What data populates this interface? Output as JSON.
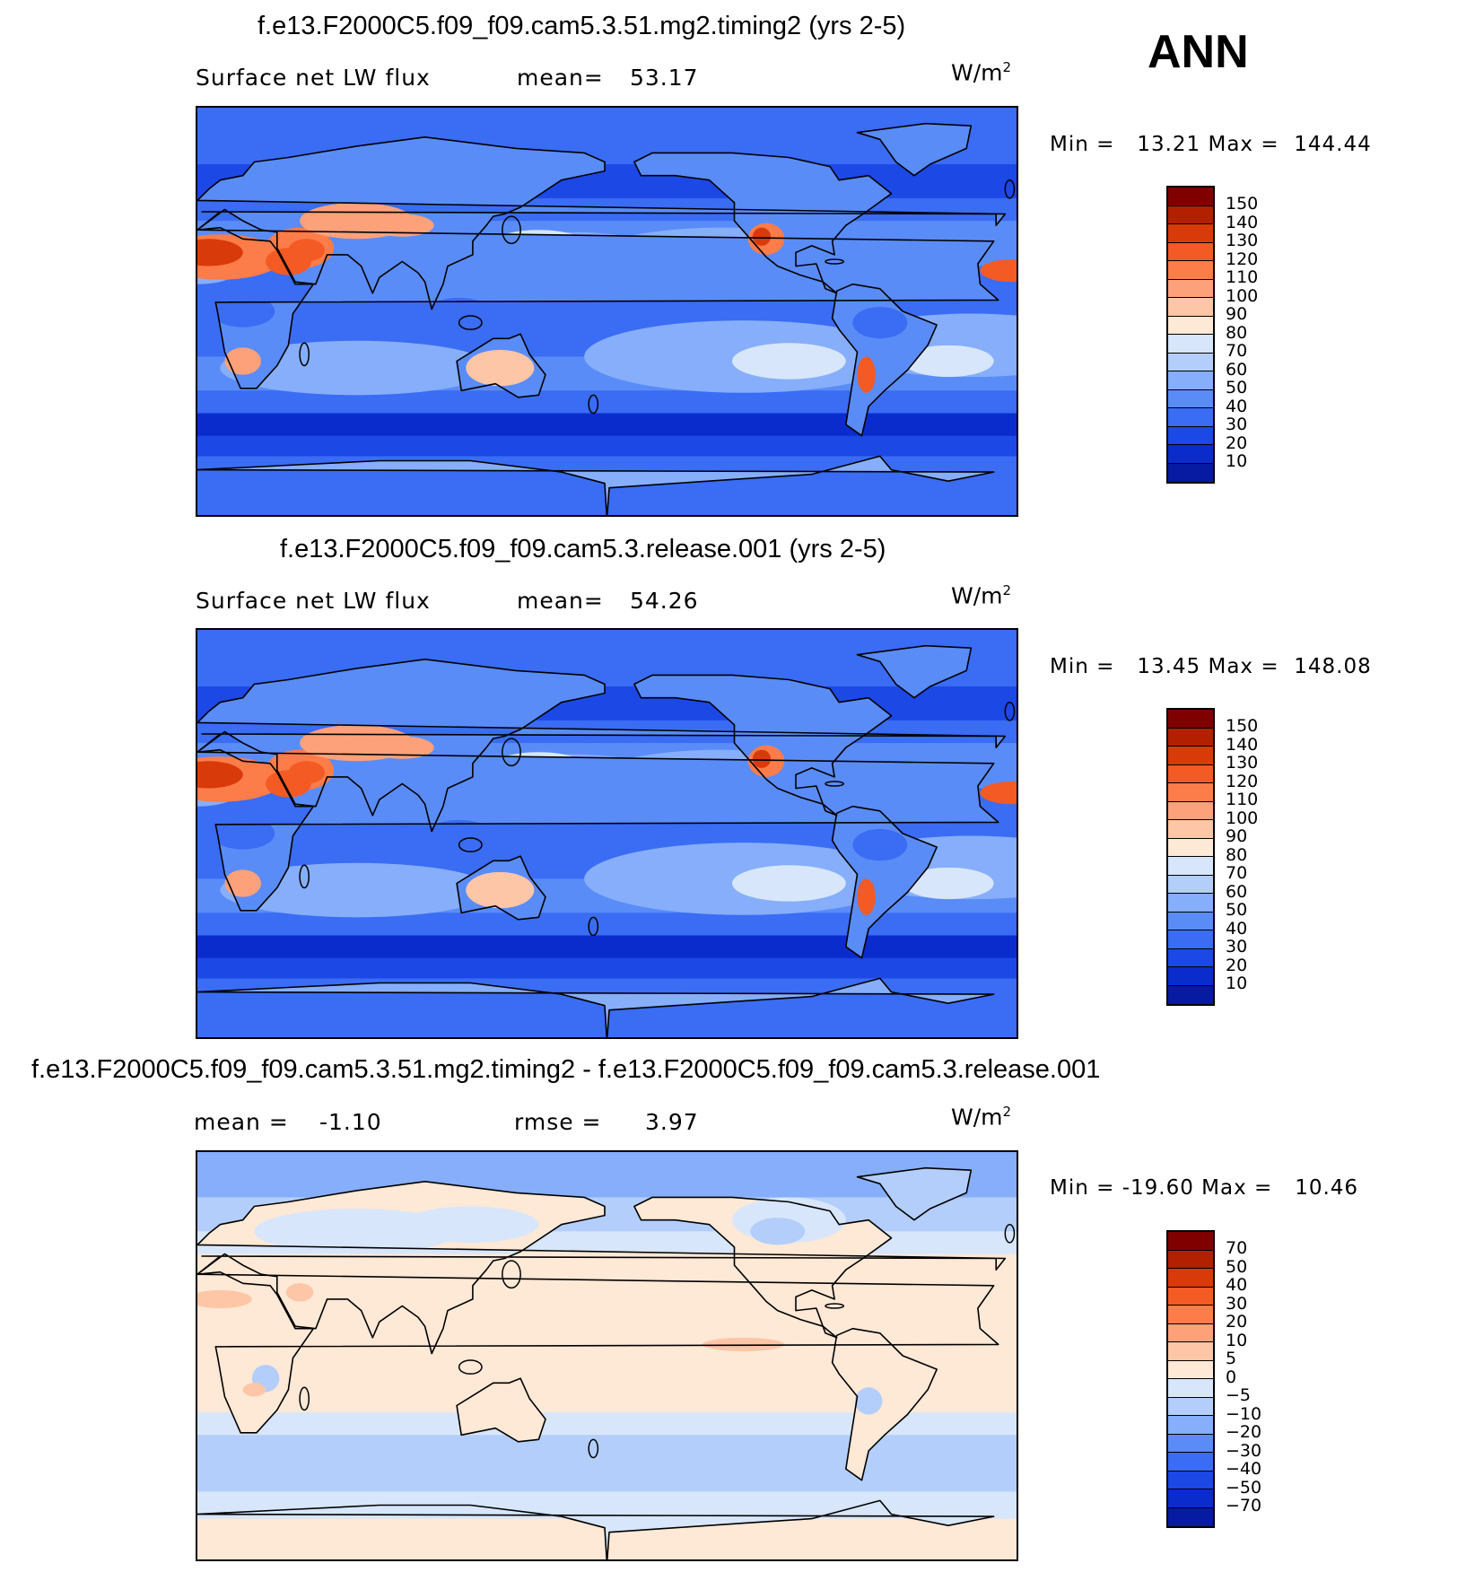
{
  "season": "ANN",
  "panels": [
    {
      "title": "f.e13.F2000C5.f09_f09.cam5.3.51.mg2.timing2 (yrs 2-5)",
      "left_label": "Surface net LW flux",
      "stat_label": "mean=",
      "stat_value": "53.17",
      "stat2_label": "",
      "stat2_value": "",
      "units": "W/m",
      "units_exp": "2",
      "minmax": "Min =   13.21 Max =  144.44",
      "colorbar_labels": [
        "150",
        "140",
        "130",
        "120",
        "110",
        "100",
        "90",
        "80",
        "70",
        "60",
        "50",
        "40",
        "30",
        "20",
        "10"
      ],
      "palette": [
        "#800000",
        "#b22000",
        "#d93a0a",
        "#f45a23",
        "#fc7c4a",
        "#fca17a",
        "#fdc6a6",
        "#fee8d6",
        "#d7e6fa",
        "#b3cefa",
        "#86aefa",
        "#5a8cf8",
        "#3a6cf4",
        "#1c48e6",
        "#0a2ccd",
        "#061aa2"
      ],
      "map_style": "full"
    },
    {
      "title": "f.e13.F2000C5.f09_f09.cam5.3.release.001 (yrs 2-5)",
      "left_label": "Surface net LW flux",
      "stat_label": "mean=",
      "stat_value": "54.26",
      "stat2_label": "",
      "stat2_value": "",
      "units": "W/m",
      "units_exp": "2",
      "minmax": "Min =   13.45 Max =  148.08",
      "colorbar_labels": [
        "150",
        "140",
        "130",
        "120",
        "110",
        "100",
        "90",
        "80",
        "70",
        "60",
        "50",
        "40",
        "30",
        "20",
        "10"
      ],
      "palette": [
        "#800000",
        "#b22000",
        "#d93a0a",
        "#f45a23",
        "#fc7c4a",
        "#fca17a",
        "#fdc6a6",
        "#fee8d6",
        "#d7e6fa",
        "#b3cefa",
        "#86aefa",
        "#5a8cf8",
        "#3a6cf4",
        "#1c48e6",
        "#0a2ccd",
        "#061aa2"
      ],
      "map_style": "full"
    },
    {
      "title": "f.e13.F2000C5.f09_f09.cam5.3.51.mg2.timing2 - f.e13.F2000C5.f09_f09.cam5.3.release.001",
      "left_label": "mean =",
      "stat_label": "-1.10",
      "stat_value": "",
      "stat2_label": "rmse =",
      "stat2_value": "3.97",
      "units": "W/m",
      "units_exp": "2",
      "minmax": "Min = -19.60 Max =   10.46",
      "colorbar_labels": [
        "70",
        "50",
        "40",
        "30",
        "20",
        "10",
        "5",
        "0",
        "-5",
        "-10",
        "-20",
        "-30",
        "-40",
        "-50",
        "-70"
      ],
      "palette": [
        "#800000",
        "#b22000",
        "#d93a0a",
        "#f45a23",
        "#fc7c4a",
        "#fca17a",
        "#fdc6a6",
        "#fee8d6",
        "#d7e6fa",
        "#b3cefa",
        "#86aefa",
        "#5a8cf8",
        "#3a6cf4",
        "#1c48e6",
        "#0a2ccd",
        "#061aa2"
      ],
      "map_style": "diff"
    }
  ]
}
